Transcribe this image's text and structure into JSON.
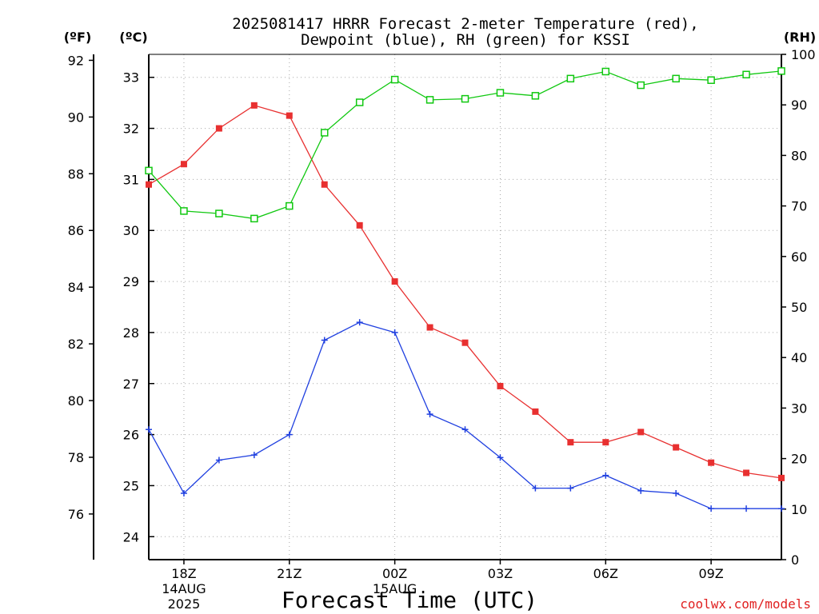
{
  "title_line1": "2025081417 HRRR Forecast 2-meter Temperature (red),",
  "title_line2": "Dewpoint (blue), RH (green) for KSSI",
  "units": {
    "fahrenheit": "(ºF)",
    "celsius": "(ºC)",
    "rh": "(RH)"
  },
  "x_axis_label": "Forecast Time (UTC)",
  "credit": "coolwx.com/models",
  "colors": {
    "temperature": "#e83030",
    "dewpoint": "#2040e0",
    "rh": "#10c810"
  },
  "chart_data": {
    "type": "line",
    "x_ticks": [
      "18Z",
      "21Z",
      "00Z",
      "03Z",
      "06Z",
      "09Z"
    ],
    "x_tick_hours": [
      1,
      4,
      7,
      10,
      13,
      16
    ],
    "x_date_labels": [
      {
        "hour": 1,
        "lines": [
          "14AUG",
          "2025"
        ]
      },
      {
        "hour": 7,
        "lines": [
          "15AUG"
        ]
      }
    ],
    "x_range_hours": [
      0,
      18
    ],
    "celsius_axis": {
      "range": [
        23.55,
        33.45
      ],
      "ticks": [
        24,
        25,
        26,
        27,
        28,
        29,
        30,
        31,
        32,
        33
      ]
    },
    "fahrenheit_axis": {
      "range": [
        74.39,
        92.21
      ],
      "ticks": [
        76,
        78,
        80,
        82,
        84,
        86,
        88,
        90,
        92
      ]
    },
    "rh_axis": {
      "range": [
        0,
        100
      ],
      "ticks": [
        0,
        10,
        20,
        30,
        40,
        50,
        60,
        70,
        80,
        90,
        100
      ]
    },
    "series": [
      {
        "name": "Temperature",
        "unit": "C",
        "marker": "filled-square",
        "color": "#e83030",
        "hours": [
          0,
          1,
          2,
          3,
          4,
          5,
          6,
          7,
          8,
          9,
          10,
          11,
          12,
          13,
          14,
          15,
          16,
          17,
          18
        ],
        "values": [
          30.9,
          31.3,
          32.0,
          32.45,
          32.25,
          30.9,
          30.1,
          29.0,
          28.1,
          27.8,
          26.95,
          26.45,
          25.85,
          25.85,
          26.05,
          25.75,
          25.45,
          25.25,
          25.15
        ]
      },
      {
        "name": "Dewpoint",
        "unit": "C",
        "marker": "plus",
        "color": "#2040e0",
        "hours": [
          0,
          1,
          2,
          3,
          4,
          5,
          6,
          7,
          8,
          9,
          10,
          11,
          12,
          13,
          14,
          15,
          16,
          17,
          18
        ],
        "values": [
          26.1,
          24.85,
          25.5,
          25.6,
          26.0,
          27.85,
          28.2,
          28.0,
          26.4,
          26.1,
          25.55,
          24.95,
          24.95,
          25.2,
          24.9,
          24.85,
          24.55,
          24.55,
          24.55
        ]
      },
      {
        "name": "RH",
        "unit": "%",
        "marker": "open-square",
        "color": "#10c810",
        "hours": [
          0,
          1,
          2,
          3,
          4,
          5,
          6,
          7,
          8,
          9,
          10,
          11,
          12,
          13,
          14,
          15,
          16,
          17,
          18
        ],
        "values": [
          77,
          69,
          68.5,
          67.5,
          70,
          84.5,
          90.5,
          95,
          91,
          91.2,
          92.4,
          91.8,
          95.2,
          96.6,
          93.9,
          95.2,
          94.9,
          96,
          96.7
        ]
      }
    ],
    "grid": true
  }
}
